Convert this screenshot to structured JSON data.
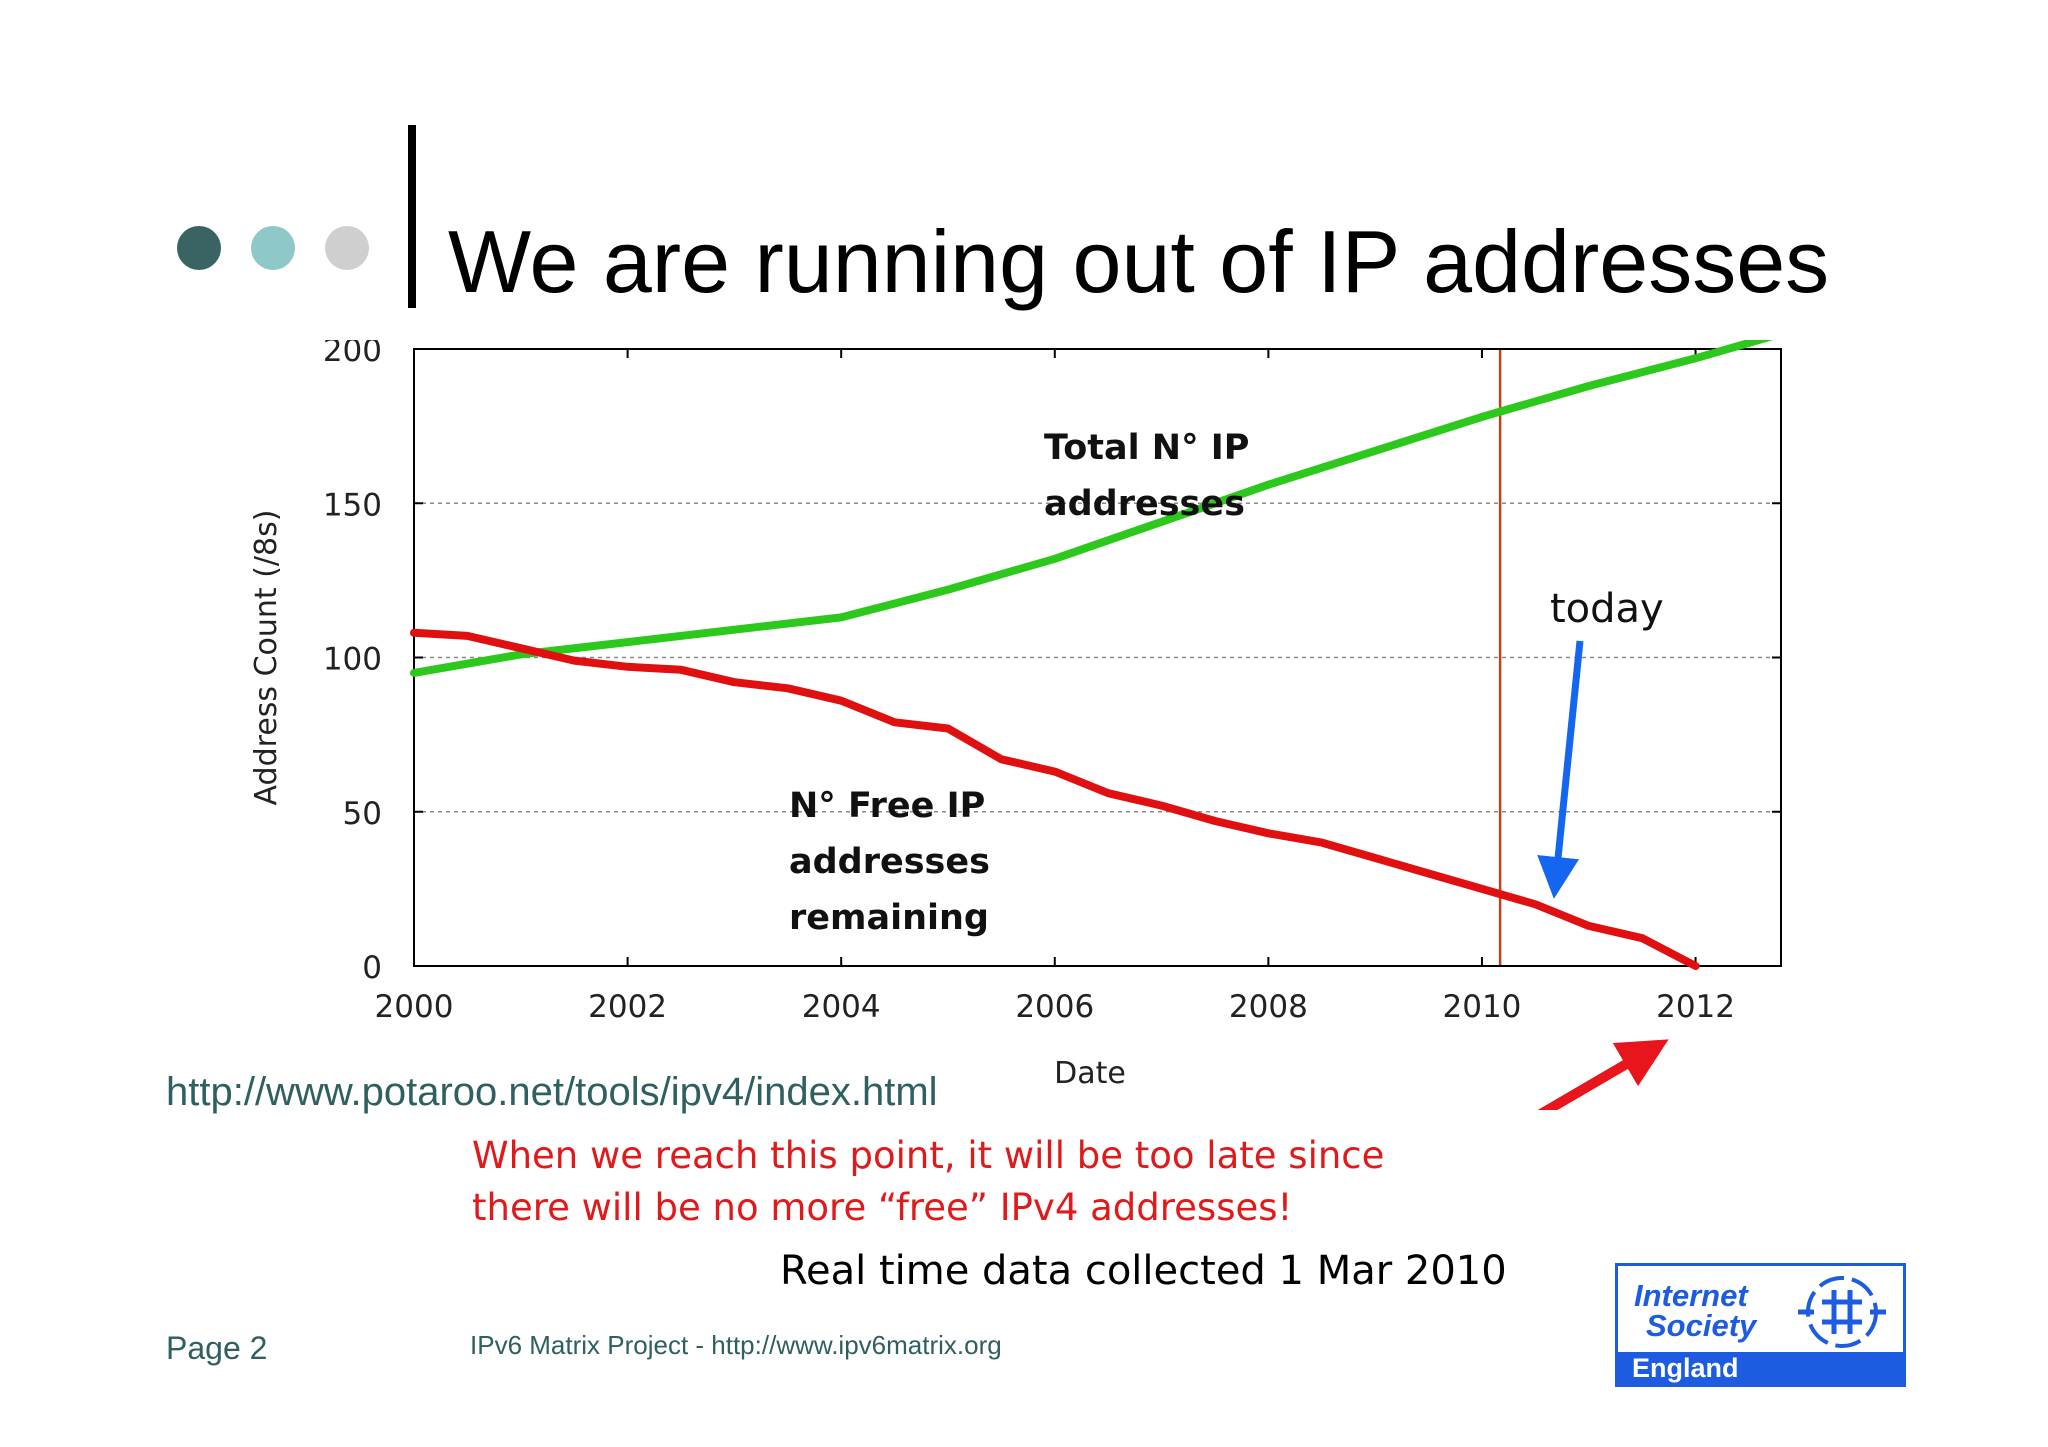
{
  "title": "We are running out of IP addresses",
  "colors": {
    "dot1": "#3a6363",
    "dot2": "#8fc9c7",
    "dot3": "#cfcfcf",
    "total_line": "#2cc91c",
    "free_line": "#e01010",
    "today_line": "#c4401a",
    "today_arrow": "#1466ee",
    "callout_arrow": "#e8151d",
    "logo_blue": "#1d5ce0"
  },
  "chart_data": {
    "type": "line",
    "xlabel": "Date",
    "ylabel": "Address Count (/8s)",
    "xlim": [
      2000,
      2012.8
    ],
    "ylim": [
      0,
      200
    ],
    "x_ticks": [
      2000,
      2002,
      2004,
      2006,
      2008,
      2010,
      2012
    ],
    "y_ticks": [
      0,
      50,
      100,
      150,
      200
    ],
    "grid": "horizontal dashed",
    "today_x": 2010.17,
    "series": [
      {
        "name": "Total N° IP addresses",
        "color": "#2cc91c",
        "x": [
          2000,
          2001,
          2002,
          2003,
          2004,
          2005,
          2006,
          2007,
          2008,
          2009,
          2010,
          2011,
          2012,
          2012.8
        ],
        "y": [
          95,
          101,
          105,
          109,
          113,
          122,
          132,
          144,
          156,
          167,
          178,
          188,
          197,
          205
        ]
      },
      {
        "name": "N° Free IP addresses remaining",
        "color": "#e01010",
        "x": [
          2000,
          2000.5,
          2001,
          2001.5,
          2002,
          2002.5,
          2003,
          2003.5,
          2004,
          2004.5,
          2005,
          2005.5,
          2006,
          2006.5,
          2007,
          2007.5,
          2008,
          2008.5,
          2009,
          2009.5,
          2010,
          2010.5,
          2011,
          2011.5,
          2012
        ],
        "y": [
          108,
          107,
          103,
          99,
          97,
          96,
          92,
          90,
          86,
          79,
          77,
          67,
          63,
          56,
          52,
          47,
          43,
          40,
          35,
          30,
          25,
          20,
          13,
          9,
          0
        ]
      }
    ],
    "annotations": {
      "total_label": [
        "Total N° IP",
        "addresses"
      ],
      "free_label": [
        "N° Free IP",
        "addresses",
        "remaining"
      ],
      "today_label": "today"
    }
  },
  "source_url": "http://www.potaroo.net/tools/ipv4/index.html",
  "note_lines": [
    "When we reach this point, it will be too late since",
    "there will be no more “free” IPv4 addresses!"
  ],
  "collected": "Real time data collected 1 Mar 2010",
  "footer": {
    "page": "Page 2",
    "project": "IPv6 Matrix Project - http://www.ipv6matrix.org"
  },
  "logo": {
    "line1": "Internet",
    "line2": "Society",
    "line3": "England"
  }
}
